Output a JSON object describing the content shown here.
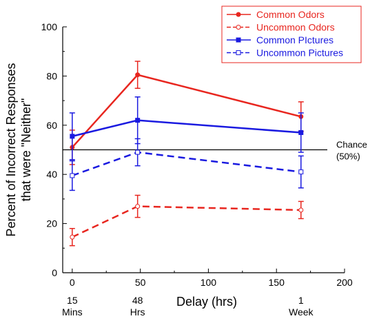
{
  "chart_data": {
    "type": "line",
    "xlabel": "Delay (hrs)",
    "ylabel_lines": [
      "Percent of Incorrect Responses",
      "that were \"Neither\""
    ],
    "xlim": [
      -7,
      200
    ],
    "ylim": [
      0,
      100
    ],
    "x_ticks": [
      0,
      50,
      100,
      150,
      200
    ],
    "y_ticks": [
      0,
      20,
      40,
      60,
      80,
      100
    ],
    "x_sublabels": [
      {
        "x": 0,
        "lines": [
          "15",
          "Mins"
        ]
      },
      {
        "x": 48,
        "lines": [
          "48",
          "Hrs"
        ]
      },
      {
        "x": 168,
        "lines": [
          "1",
          "Week"
        ]
      }
    ],
    "reference_line": {
      "y": 50,
      "label_lines": [
        "Chance",
        "(50%)"
      ]
    },
    "legend_position": "top-right",
    "series": [
      {
        "name": "Common Odors",
        "color": "#e8261f",
        "dashed": false,
        "marker": "filled-circle",
        "points": [
          {
            "x": 0,
            "y": 51,
            "err": 7
          },
          {
            "x": 48,
            "y": 80.5,
            "err": 5.5
          },
          {
            "x": 168,
            "y": 63.5,
            "err": 6
          }
        ]
      },
      {
        "name": "Uncommon Odors",
        "color": "#e8261f",
        "dashed": true,
        "marker": "open-circle",
        "points": [
          {
            "x": 0,
            "y": 14.5,
            "err": 3.5
          },
          {
            "x": 48,
            "y": 27,
            "err": 4.5
          },
          {
            "x": 168,
            "y": 25.5,
            "err": 3.5
          }
        ]
      },
      {
        "name": "Common PIctures",
        "color": "#1a1ae0",
        "dashed": false,
        "marker": "filled-square",
        "points": [
          {
            "x": 0,
            "y": 55.5,
            "err": 9.5
          },
          {
            "x": 48,
            "y": 62,
            "err": 9.5
          },
          {
            "x": 168,
            "y": 57,
            "err": 8
          }
        ]
      },
      {
        "name": "Uncommon Pictures",
        "color": "#1a1ae0",
        "dashed": true,
        "marker": "open-square",
        "points": [
          {
            "x": 0,
            "y": 39.5,
            "err": 6
          },
          {
            "x": 48,
            "y": 49,
            "err": 5.5
          },
          {
            "x": 168,
            "y": 41,
            "err": 6.5
          }
        ]
      }
    ]
  }
}
